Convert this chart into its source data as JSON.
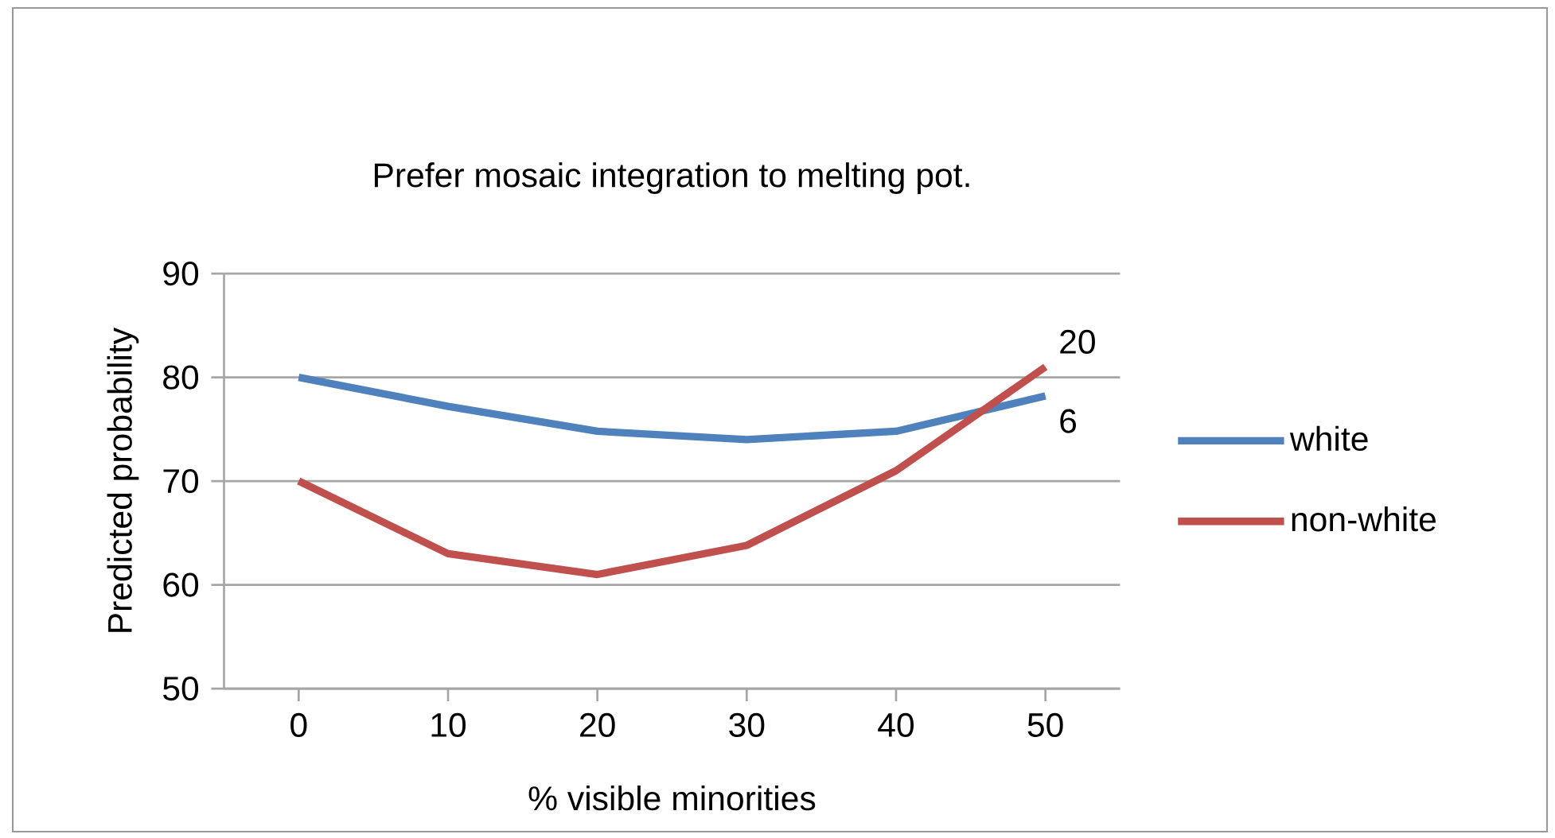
{
  "chart_data": {
    "type": "line",
    "title": "Prefer mosaic integration to melting pot.",
    "xlabel": "% visible minorities",
    "ylabel": "Predicted probability",
    "categories": [
      "0",
      "10",
      "20",
      "30",
      "40",
      "50"
    ],
    "series": [
      {
        "name": "white",
        "color": "#4f81bd",
        "values": [
          80,
          77.2,
          74.8,
          74,
          74.8,
          78.2
        ]
      },
      {
        "name": "non-white",
        "color": "#c0504d",
        "values": [
          70,
          63,
          61,
          63.8,
          71,
          81
        ]
      }
    ],
    "ylim": [
      50,
      90
    ],
    "yticks": [
      50,
      60,
      70,
      80,
      90
    ],
    "grid": "y",
    "legend": "right",
    "marker": "none",
    "line_style": "solid",
    "annotations": [
      {
        "text": "20",
        "x": "50",
        "y": 81
      },
      {
        "text": "6",
        "x": "50",
        "y": 78.2
      }
    ]
  }
}
